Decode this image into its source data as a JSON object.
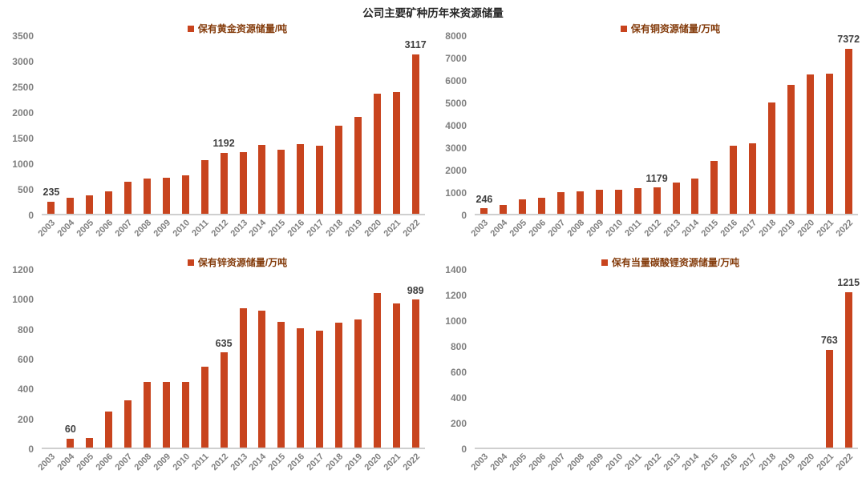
{
  "page": {
    "title": "公司主要矿种历年来资源储量"
  },
  "colors": {
    "bar": "#C8441E",
    "legend_text": "#843C0C",
    "tick_label": "#7F7F7F",
    "data_label": "#3F3F3F",
    "axis_line": "#CFCFCF",
    "title": "#262626",
    "background": "#FFFFFF"
  },
  "chart_data": [
    {
      "id": "gold",
      "type": "bar",
      "legend": "保有黄金资源储量/吨",
      "categories": [
        "2003",
        "2004",
        "2005",
        "2006",
        "2007",
        "2008",
        "2009",
        "2010",
        "2011",
        "2012",
        "2013",
        "2014",
        "2015",
        "2016",
        "2017",
        "2018",
        "2019",
        "2020",
        "2021",
        "2022"
      ],
      "values": [
        235,
        310,
        360,
        440,
        630,
        690,
        705,
        745,
        1040,
        1192,
        1210,
        1350,
        1250,
        1360,
        1330,
        1725,
        1885,
        2340,
        2380,
        3117
      ],
      "ylim": [
        0,
        3500
      ],
      "ystep": 500,
      "grid": false,
      "legend_position": "top-center",
      "annotations": [
        {
          "index": 0,
          "text": "235"
        },
        {
          "index": 9,
          "text": "1192"
        },
        {
          "index": 19,
          "text": "3117"
        }
      ]
    },
    {
      "id": "copper",
      "type": "bar",
      "legend": "保有铜资源储量/万吨",
      "categories": [
        "2003",
        "2004",
        "2005",
        "2006",
        "2007",
        "2008",
        "2009",
        "2010",
        "2011",
        "2012",
        "2013",
        "2014",
        "2015",
        "2016",
        "2017",
        "2018",
        "2019",
        "2020",
        "2021",
        "2022"
      ],
      "values": [
        246,
        380,
        650,
        700,
        970,
        1000,
        1080,
        1080,
        1150,
        1179,
        1380,
        1580,
        2370,
        3040,
        3160,
        4950,
        5740,
        6230,
        6250,
        7372
      ],
      "ylim": [
        0,
        8000
      ],
      "ystep": 1000,
      "grid": false,
      "legend_position": "top-center",
      "annotations": [
        {
          "index": 0,
          "text": "246"
        },
        {
          "index": 9,
          "text": "1179"
        },
        {
          "index": 19,
          "text": "7372"
        }
      ]
    },
    {
      "id": "zinc",
      "type": "bar",
      "legend": "保有锌资源储量/万吨",
      "categories": [
        "2003",
        "2004",
        "2005",
        "2006",
        "2007",
        "2008",
        "2009",
        "2010",
        "2011",
        "2012",
        "2013",
        "2014",
        "2015",
        "2016",
        "2017",
        "2018",
        "2019",
        "2020",
        "2021",
        "2022"
      ],
      "values": [
        0,
        60,
        65,
        240,
        315,
        440,
        440,
        438,
        540,
        635,
        930,
        915,
        840,
        800,
        780,
        835,
        855,
        1035,
        965,
        989
      ],
      "ylim": [
        0,
        1200
      ],
      "ystep": 200,
      "grid": false,
      "legend_position": "top-center",
      "annotations": [
        {
          "index": 1,
          "text": "60"
        },
        {
          "index": 9,
          "text": "635"
        },
        {
          "index": 19,
          "text": "989"
        }
      ]
    },
    {
      "id": "lithium",
      "type": "bar",
      "legend": "保有当量碳酸锂资源储量/万吨",
      "categories": [
        "2003",
        "2004",
        "2005",
        "2006",
        "2007",
        "2008",
        "2009",
        "2010",
        "2011",
        "2012",
        "2013",
        "2014",
        "2015",
        "2016",
        "2017",
        "2018",
        "2019",
        "2020",
        "2021",
        "2022"
      ],
      "values": [
        0,
        0,
        0,
        0,
        0,
        0,
        0,
        0,
        0,
        0,
        0,
        0,
        0,
        0,
        0,
        0,
        0,
        0,
        763,
        1215
      ],
      "ylim": [
        0,
        1400
      ],
      "ystep": 200,
      "grid": false,
      "legend_position": "top-center",
      "annotations": [
        {
          "index": 18,
          "text": "763"
        },
        {
          "index": 19,
          "text": "1215"
        }
      ]
    }
  ]
}
